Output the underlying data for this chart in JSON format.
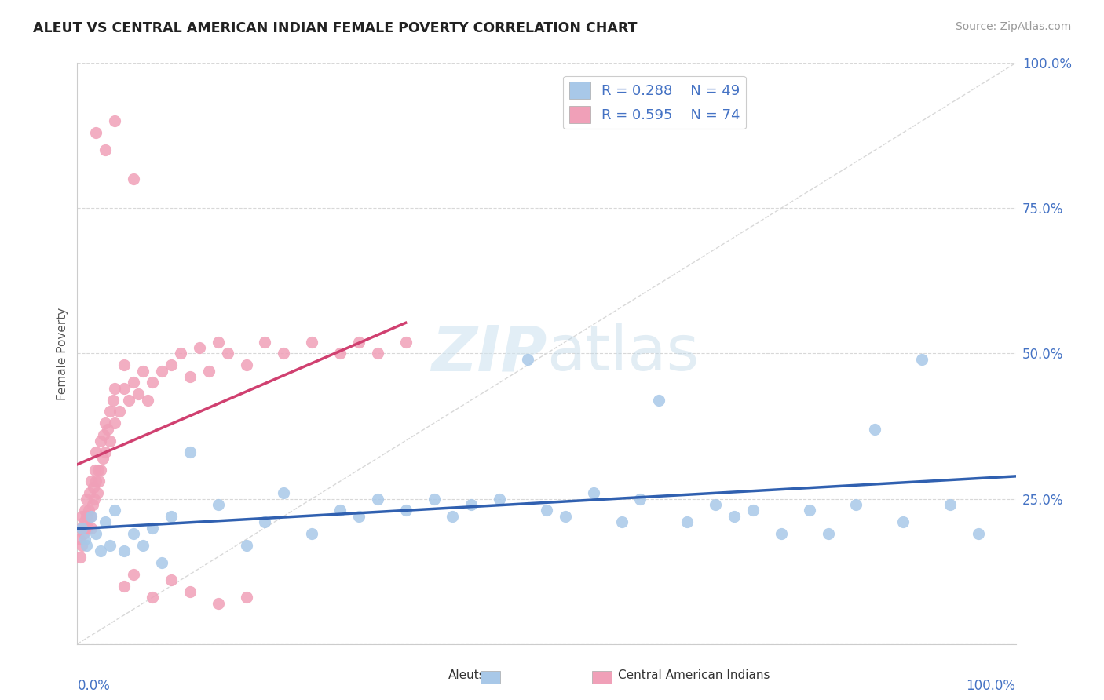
{
  "title": "ALEUT VS CENTRAL AMERICAN INDIAN FEMALE POVERTY CORRELATION CHART",
  "source": "Source: ZipAtlas.com",
  "ylabel": "Female Poverty",
  "aleut_R": 0.288,
  "aleut_N": 49,
  "cai_R": 0.595,
  "cai_N": 74,
  "aleut_color": "#a8c8e8",
  "cai_color": "#f0a0b8",
  "aleut_line_color": "#3060b0",
  "cai_line_color": "#d04070",
  "diagonal_color": "#c8c8c8",
  "background_color": "#ffffff",
  "grid_color": "#d8d8d8",
  "aleut_x": [
    0.5,
    0.8,
    1.0,
    1.5,
    2.0,
    2.5,
    3.0,
    3.5,
    4.0,
    5.0,
    6.0,
    7.0,
    8.0,
    9.0,
    10.0,
    12.0,
    15.0,
    18.0,
    20.0,
    22.0,
    25.0,
    28.0,
    30.0,
    32.0,
    35.0,
    38.0,
    40.0,
    42.0,
    45.0,
    48.0,
    50.0,
    52.0,
    55.0,
    58.0,
    60.0,
    62.0,
    65.0,
    68.0,
    70.0,
    72.0,
    75.0,
    78.0,
    80.0,
    83.0,
    85.0,
    88.0,
    90.0,
    93.0,
    96.0
  ],
  "aleut_y": [
    20.0,
    18.0,
    17.0,
    22.0,
    19.0,
    16.0,
    21.0,
    17.0,
    23.0,
    16.0,
    19.0,
    17.0,
    20.0,
    14.0,
    22.0,
    33.0,
    24.0,
    17.0,
    21.0,
    26.0,
    19.0,
    23.0,
    22.0,
    25.0,
    23.0,
    25.0,
    22.0,
    24.0,
    25.0,
    49.0,
    23.0,
    22.0,
    26.0,
    21.0,
    25.0,
    42.0,
    21.0,
    24.0,
    22.0,
    23.0,
    19.0,
    23.0,
    19.0,
    24.0,
    37.0,
    21.0,
    49.0,
    24.0,
    19.0
  ],
  "cai_x": [
    0.2,
    0.3,
    0.4,
    0.5,
    0.5,
    0.6,
    0.7,
    0.8,
    0.9,
    1.0,
    1.0,
    1.1,
    1.2,
    1.3,
    1.4,
    1.5,
    1.5,
    1.6,
    1.7,
    1.8,
    1.9,
    2.0,
    2.0,
    2.1,
    2.2,
    2.3,
    2.5,
    2.5,
    2.7,
    2.8,
    3.0,
    3.0,
    3.2,
    3.5,
    3.5,
    3.8,
    4.0,
    4.0,
    4.5,
    5.0,
    5.0,
    5.5,
    6.0,
    6.5,
    7.0,
    7.5,
    8.0,
    9.0,
    10.0,
    11.0,
    12.0,
    13.0,
    14.0,
    15.0,
    16.0,
    18.0,
    20.0,
    22.0,
    25.0,
    28.0,
    30.0,
    32.0,
    35.0,
    5.0,
    6.0,
    8.0,
    10.0,
    12.0,
    15.0,
    18.0,
    2.0,
    3.0,
    4.0,
    6.0
  ],
  "cai_y": [
    18.0,
    15.0,
    20.0,
    17.0,
    22.0,
    19.0,
    21.0,
    23.0,
    20.0,
    22.0,
    25.0,
    20.0,
    23.0,
    26.0,
    22.0,
    20.0,
    28.0,
    24.0,
    27.0,
    25.0,
    30.0,
    28.0,
    33.0,
    26.0,
    30.0,
    28.0,
    35.0,
    30.0,
    32.0,
    36.0,
    33.0,
    38.0,
    37.0,
    40.0,
    35.0,
    42.0,
    38.0,
    44.0,
    40.0,
    44.0,
    48.0,
    42.0,
    45.0,
    43.0,
    47.0,
    42.0,
    45.0,
    47.0,
    48.0,
    50.0,
    46.0,
    51.0,
    47.0,
    52.0,
    50.0,
    48.0,
    52.0,
    50.0,
    52.0,
    50.0,
    52.0,
    50.0,
    52.0,
    10.0,
    12.0,
    8.0,
    11.0,
    9.0,
    7.0,
    8.0,
    88.0,
    85.0,
    90.0,
    80.0
  ]
}
